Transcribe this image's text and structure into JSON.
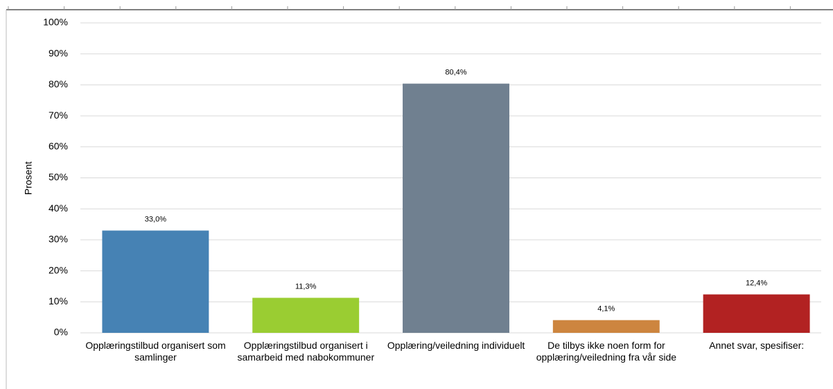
{
  "chart_data": {
    "type": "bar",
    "y_label": "Prosent",
    "categories": [
      "Opplæringstilbud organisert som samlinger",
      "Opplæringstilbud organisert i samarbeid med nabokommuner",
      "Opplæring/veiledning individuelt",
      "De tilbys ikke noen form for opplæring/veiledning fra vår side",
      "Annet svar, spesifiser:"
    ],
    "values": [
      33.0,
      11.3,
      80.4,
      4.1,
      12.4
    ],
    "value_labels": [
      "33,0%",
      "11,3%",
      "80,4%",
      "4,1%",
      "12,4%"
    ],
    "colors": [
      "#4682b4",
      "#9acd32",
      "#708090",
      "#cd853f",
      "#b22222"
    ],
    "ylim": [
      0,
      100
    ],
    "yticks": [
      {
        "value": 0,
        "label": "0%"
      },
      {
        "value": 10,
        "label": "10%"
      },
      {
        "value": 20,
        "label": "20%"
      },
      {
        "value": 30,
        "label": "30%"
      },
      {
        "value": 40,
        "label": "40%"
      },
      {
        "value": 50,
        "label": "50%"
      },
      {
        "value": 60,
        "label": "60%"
      },
      {
        "value": 70,
        "label": "70%"
      },
      {
        "value": 80,
        "label": "80%"
      },
      {
        "value": 90,
        "label": "90%"
      },
      {
        "value": 100,
        "label": "100%"
      }
    ],
    "grid": true
  }
}
